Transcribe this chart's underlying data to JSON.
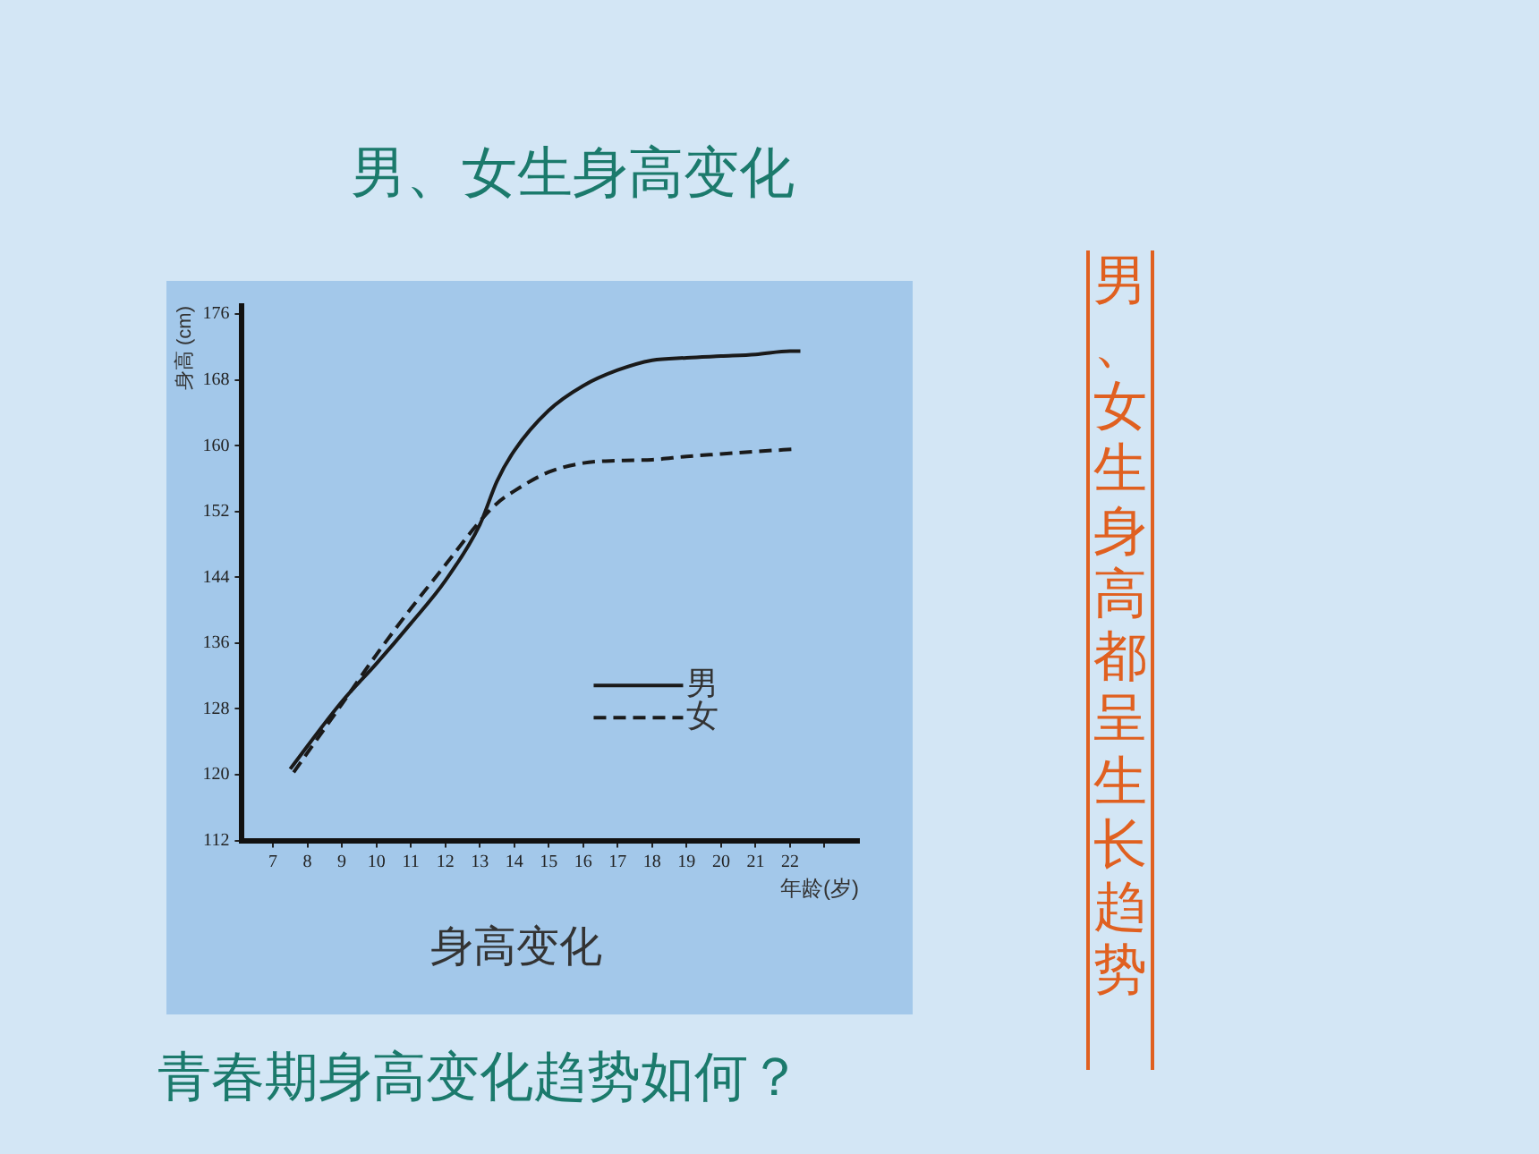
{
  "chart_data": {
    "type": "line",
    "title": "男、女生身高变化",
    "subtitle": "身高变化",
    "xlabel": "年龄(岁)",
    "ylabel": "身高 (cm)",
    "annotations": [
      "青春期身高变化趋势如何？",
      "男、女生身高都呈生长趋势"
    ],
    "xlim": [
      6.1,
      24
    ],
    "xticks": [
      7,
      8,
      9,
      10,
      11,
      12,
      13,
      14,
      15,
      16,
      17,
      18,
      19,
      20,
      21,
      22,
      {
        "value": 23,
        "label": null
      }
    ],
    "ylim": [
      112,
      177
    ],
    "yticks": [
      112,
      120,
      128,
      136,
      144,
      152,
      160,
      168,
      176
    ],
    "grid": false,
    "legend": "bottom right",
    "marker": "none",
    "series": [
      {
        "name": "男",
        "color": "#1a1a1a",
        "line_style": "solid",
        "x": [
          7.5,
          9,
          10,
          11,
          12,
          13,
          13.5,
          14,
          15,
          16,
          17,
          18,
          19,
          20,
          21,
          22,
          22.3
        ],
        "values": [
          120.7,
          128.9,
          133.5,
          138.4,
          143.6,
          150.4,
          155.7,
          159.4,
          164.3,
          167.3,
          169.2,
          170.4,
          170.7,
          170.9,
          171.1,
          171.5,
          171.5
        ]
      },
      {
        "name": "女",
        "color": "#1a1a1a",
        "line_style": "dashed",
        "x": [
          7.6,
          9,
          10,
          11,
          12,
          13,
          13.5,
          14,
          15,
          16,
          17,
          18,
          19,
          20,
          21,
          22.2
        ],
        "values": [
          120.3,
          128.6,
          134.6,
          140.2,
          145.5,
          150.8,
          153.0,
          154.5,
          156.8,
          157.9,
          158.2,
          158.3,
          158.7,
          159.0,
          159.3,
          159.6
        ]
      }
    ]
  }
}
